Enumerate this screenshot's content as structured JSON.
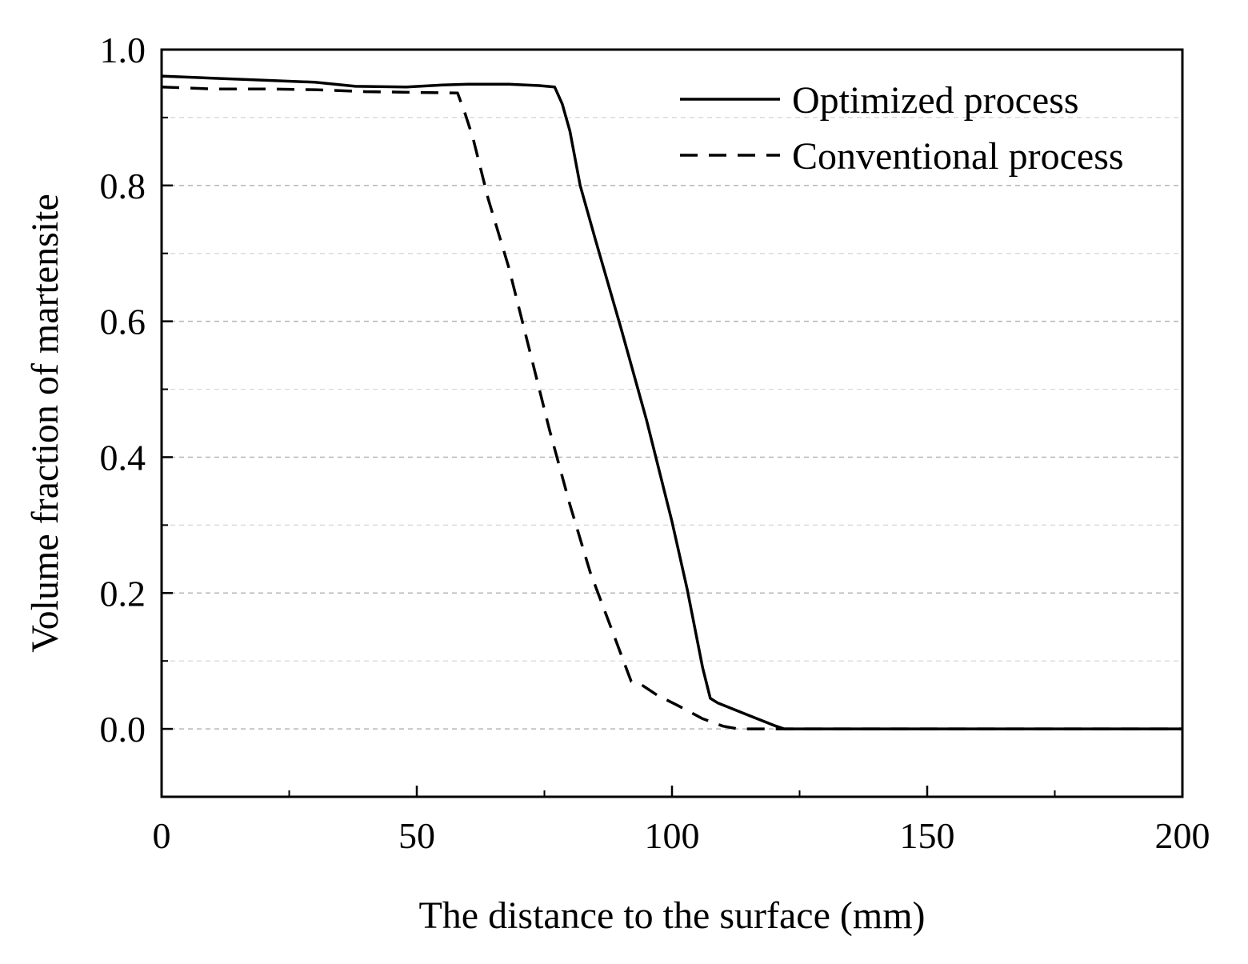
{
  "chart_data": {
    "type": "line",
    "title": "",
    "xlabel": "The distance to the surface (mm)",
    "ylabel": "Volume fraction of martensite",
    "xlim": [
      0,
      200
    ],
    "ylim": [
      -0.1,
      1.0
    ],
    "x_ticks": [
      0,
      50,
      100,
      150,
      200
    ],
    "x_tick_labels": [
      "0",
      "50",
      "100",
      "150",
      "200"
    ],
    "y_ticks": [
      0.0,
      0.2,
      0.4,
      0.6,
      0.8,
      1.0
    ],
    "y_tick_labels": [
      "0.0",
      "0.2",
      "0.4",
      "0.6",
      "0.8",
      "1.0"
    ],
    "grid": "horizontal dashed",
    "legend_position": "top-right",
    "series": [
      {
        "name": "Optimized process",
        "style": "solid",
        "color": "#000000",
        "x": [
          0,
          10,
          20,
          30,
          38,
          48,
          55,
          60,
          68,
          74,
          77,
          78.5,
          80,
          82,
          85,
          90,
          95,
          100,
          103,
          106,
          107.5,
          109,
          115,
          120,
          122,
          150,
          200
        ],
        "y": [
          0.961,
          0.958,
          0.955,
          0.952,
          0.946,
          0.945,
          0.948,
          0.949,
          0.949,
          0.947,
          0.945,
          0.92,
          0.88,
          0.8,
          0.72,
          0.59,
          0.455,
          0.305,
          0.205,
          0.09,
          0.045,
          0.038,
          0.02,
          0.005,
          0.0,
          0.0,
          0.0
        ]
      },
      {
        "name": "Conventional process",
        "style": "dashed",
        "color": "#000000",
        "x": [
          0,
          10,
          20,
          30,
          40,
          50,
          58,
          59.5,
          61,
          64,
          68,
          72,
          76,
          80,
          84,
          87,
          90,
          92,
          94,
          97,
          101,
          106,
          110,
          113,
          115,
          120,
          200
        ],
        "y": [
          0.945,
          0.942,
          0.942,
          0.941,
          0.938,
          0.937,
          0.936,
          0.905,
          0.87,
          0.78,
          0.68,
          0.56,
          0.44,
          0.33,
          0.23,
          0.17,
          0.11,
          0.07,
          0.065,
          0.05,
          0.035,
          0.015,
          0.004,
          0.0,
          0.0,
          0.0,
          0.0
        ]
      }
    ]
  }
}
